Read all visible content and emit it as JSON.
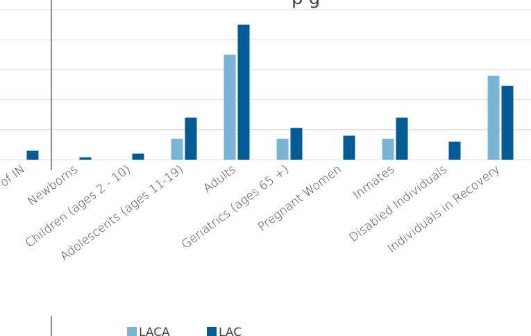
{
  "chart_data": {
    "type": "bar",
    "title": "p      g",
    "categories": [
      "e of IN",
      "Newborns",
      "Children (ages 2 - 10)",
      "Adolescents (ages 11-19)",
      "Adults",
      "Geriatrics (ages 65 +)",
      "Pregnant Women",
      "Inmates",
      "Disabled Individuals",
      "Individuals in Recovery"
    ],
    "series": [
      {
        "name": "LACA",
        "color": "#7ab3d8",
        "values": [
          0,
          0,
          0,
          3.5,
          17.5,
          3.5,
          0,
          3.5,
          0,
          14
        ]
      },
      {
        "name": "LAC",
        "color": "#005b94",
        "values": [
          1.5,
          0.4,
          1,
          7,
          22.5,
          5.3,
          4,
          7,
          3,
          12.3
        ]
      }
    ],
    "ylim": [
      0,
      25
    ],
    "grid": true,
    "legend": "bottom"
  }
}
